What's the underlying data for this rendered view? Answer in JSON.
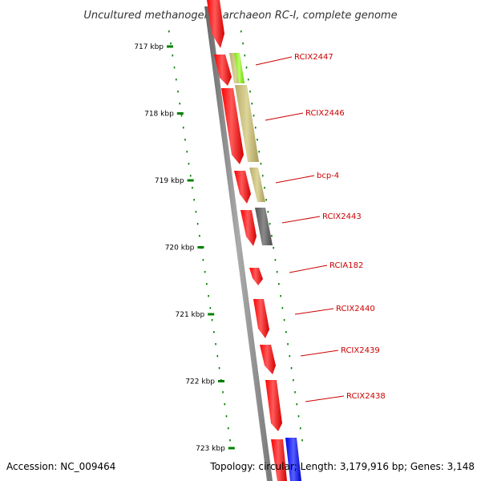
{
  "title": "Uncultured methanogenic archaeon RC-I, complete genome",
  "footer": {
    "accession": "Accession: NC_009464",
    "summary": "Topology: circular; Length: 3,179,916 bp; Genes: 3,148"
  },
  "ticks": [
    {
      "label": "717 kbp",
      "kbp": 717
    },
    {
      "label": "718 kbp",
      "kbp": 718
    },
    {
      "label": "719 kbp",
      "kbp": 719
    },
    {
      "label": "720 kbp",
      "kbp": 720
    },
    {
      "label": "721 kbp",
      "kbp": 721
    },
    {
      "label": "722 kbp",
      "kbp": 722
    },
    {
      "label": "723 kbp",
      "kbp": 723
    }
  ],
  "gene_labels": [
    {
      "name": "RCIX2447"
    },
    {
      "name": "RCIX2446"
    },
    {
      "name": "bcp-4"
    },
    {
      "name": "RCIX2443"
    },
    {
      "name": "RCIA182"
    },
    {
      "name": "RCIX2440"
    },
    {
      "name": "RCIX2439"
    },
    {
      "name": "RCIX2438"
    }
  ],
  "colors": {
    "backbone": "#888888",
    "gene_red": "#ff0000",
    "cog_lime": "#99ee33",
    "cog_khaki": "#c8bf80",
    "cog_gray": "#6e6e6e",
    "cog_blue": "#1f2bff",
    "tick_green": "#008000",
    "label_red": "#cc0000"
  }
}
